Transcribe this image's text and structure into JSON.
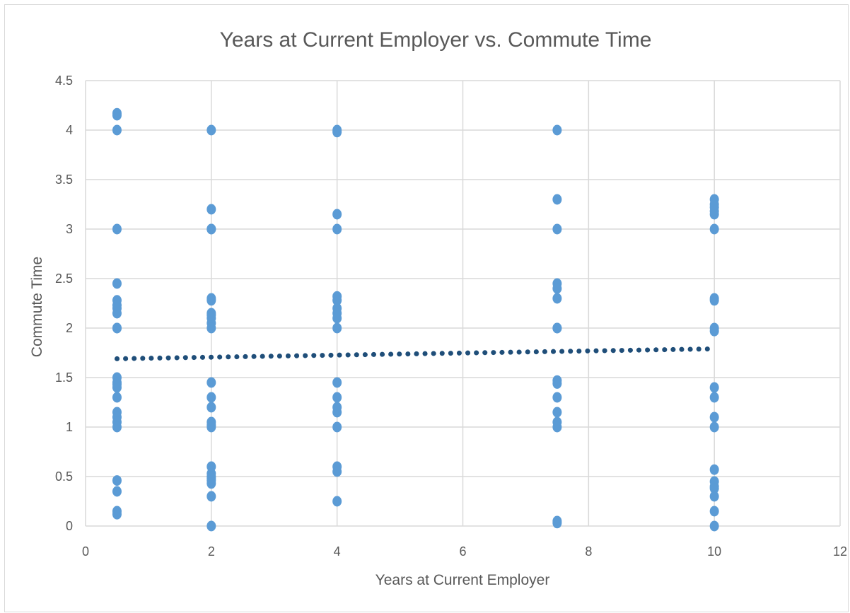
{
  "chart_data": {
    "type": "scatter",
    "title": "Years at Current Employer vs. Commute Time",
    "xlabel": "Years at Current Employer",
    "ylabel": "Commute Time",
    "xlim": [
      0,
      12
    ],
    "ylim": [
      0,
      4.5
    ],
    "x_ticks": [
      "0",
      "2",
      "4",
      "6",
      "8",
      "10",
      "12"
    ],
    "y_ticks": [
      "0",
      "0.5",
      "1",
      "1.5",
      "2",
      "2.5",
      "3",
      "3.5",
      "4",
      "4.5"
    ],
    "grid": true,
    "legend": "none",
    "marker_color": "#5b9bd5",
    "trendline": {
      "type": "linear",
      "style": "dotted",
      "color": "#1f4e79",
      "x": [
        0.5,
        10
      ],
      "y": [
        1.69,
        1.79
      ]
    },
    "series": [
      {
        "x": [
          0.5,
          0.5,
          0.5,
          0.5,
          0.5,
          0.5,
          0.5,
          0.5,
          0.5,
          0.5,
          0.5,
          0.5,
          0.5,
          0.5,
          0.5,
          0.5,
          0.5,
          0.5,
          0.5,
          0.5,
          0.5,
          0.5,
          0.5,
          0.5,
          2,
          2,
          2,
          2,
          2,
          2,
          2,
          2,
          2,
          2,
          2,
          2,
          2,
          2,
          2,
          2,
          2,
          2,
          2,
          2,
          2,
          2,
          2,
          2,
          2,
          4,
          4,
          4,
          4,
          4,
          4,
          4,
          4,
          4,
          4,
          4,
          4,
          4,
          4,
          4,
          4,
          4,
          4,
          7.5,
          7.5,
          7.5,
          7.5,
          7.5,
          7.5,
          7.5,
          7.5,
          7.5,
          7.5,
          7.5,
          7.5,
          7.5,
          7.5,
          7.5,
          7.5,
          10,
          10,
          10,
          10,
          10,
          10,
          10,
          10,
          10,
          10,
          10,
          10,
          10,
          10,
          10,
          10,
          10,
          10,
          10,
          10,
          10
        ],
        "y": [
          4.15,
          4.0,
          3.0,
          2.45,
          2.28,
          2.2,
          2.15,
          2.0,
          1.5,
          1.45,
          1.4,
          1.3,
          1.15,
          1.1,
          1.05,
          1.0,
          0.46,
          0.35,
          0.15,
          0.12,
          4.17,
          2.23,
          2.0,
          1.43,
          4.0,
          3.2,
          3.0,
          2.3,
          2.28,
          2.15,
          2.1,
          2.05,
          2.0,
          1.45,
          1.3,
          1.2,
          1.05,
          1.0,
          1.02,
          0.6,
          0.53,
          0.5,
          0.46,
          0.43,
          0.3,
          0.0,
          3.0,
          2.13,
          0.48,
          4.0,
          3.15,
          3.0,
          2.32,
          2.28,
          2.2,
          2.15,
          2.1,
          2.0,
          1.45,
          1.3,
          1.2,
          1.15,
          1.0,
          0.6,
          0.55,
          0.25,
          3.98,
          4.0,
          3.3,
          3.0,
          2.45,
          2.4,
          2.3,
          2.0,
          1.47,
          1.44,
          1.3,
          1.15,
          1.05,
          1.0,
          0.05,
          0.03,
          2.0,
          3.3,
          3.22,
          3.18,
          3.15,
          3.0,
          2.3,
          2.28,
          2.0,
          1.97,
          1.4,
          1.3,
          1.1,
          1.0,
          0.57,
          0.45,
          0.4,
          0.38,
          0.3,
          0.15,
          0.0,
          3.25
        ]
      }
    ]
  }
}
